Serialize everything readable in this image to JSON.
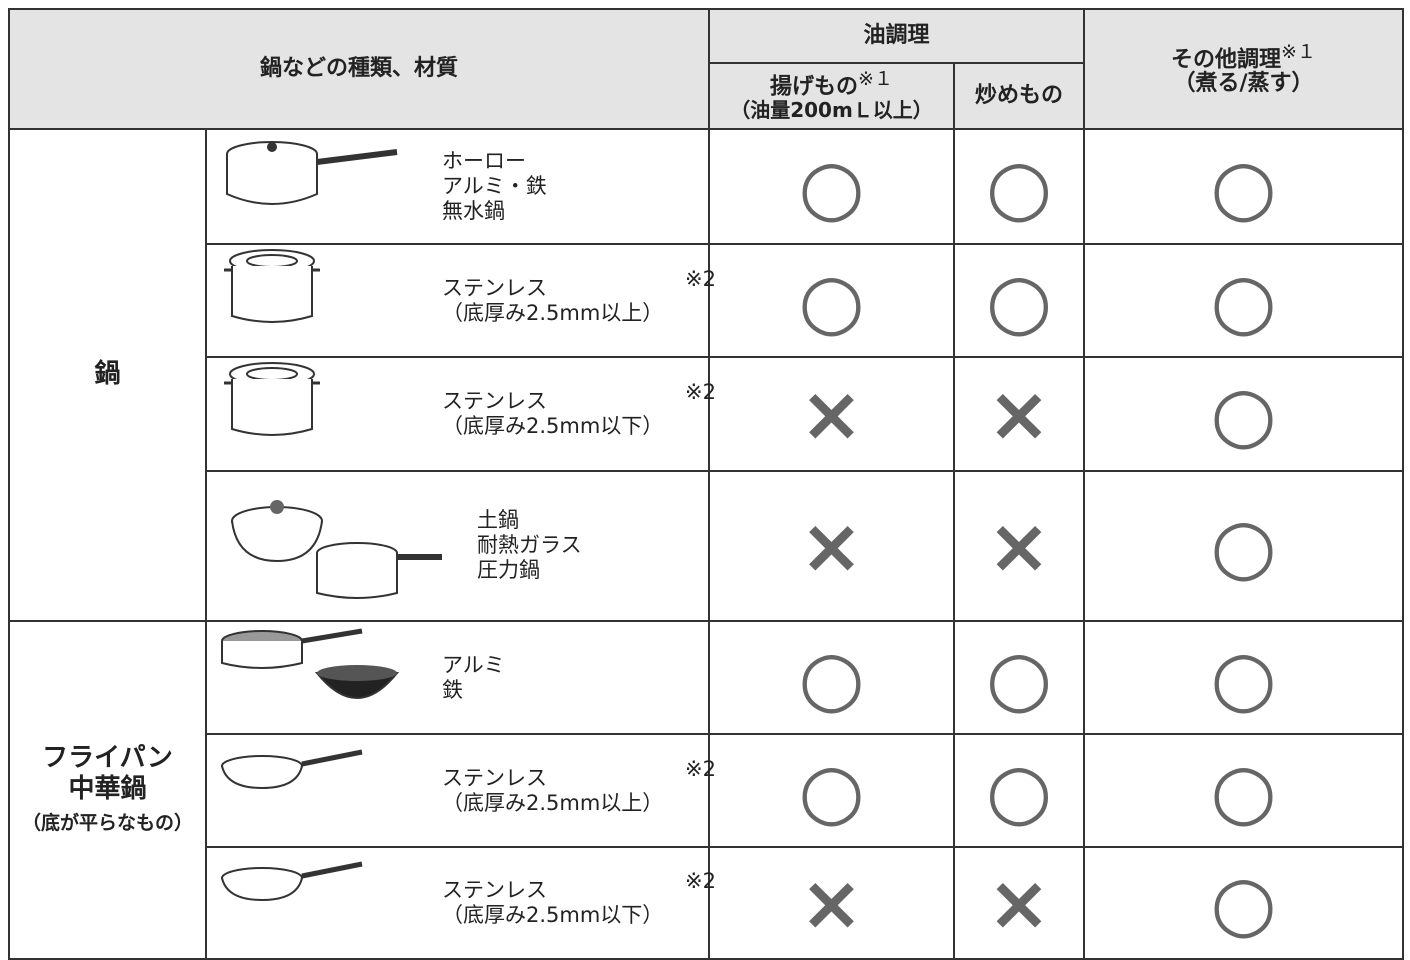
{
  "header": {
    "title": "鍋などの種類、材質",
    "oil": "油調理",
    "fry": {
      "label": "揚げもの",
      "note": "※１",
      "sub": "（油量200mＬ以上）"
    },
    "stir": "炒めもの",
    "other": {
      "label": "その他調理",
      "note": "※１",
      "sub": "（煮る/蒸す）"
    }
  },
  "groups": [
    {
      "category": [
        "鍋"
      ],
      "rows": [
        {
          "materials": [
            "ホーロー",
            "アルミ・鉄",
            "無水鍋"
          ],
          "marks": [
            "○",
            "○",
            "○"
          ]
        },
        {
          "materials": [
            "ステンレス",
            "（底厚み2.5mm以上）"
          ],
          "note": "※2",
          "marks": [
            "○",
            "○",
            "○"
          ]
        },
        {
          "materials": [
            "ステンレス",
            "（底厚み2.5mm以下）"
          ],
          "note": "※2",
          "marks": [
            "×",
            "×",
            "○"
          ]
        },
        {
          "materials": [
            "土鍋",
            "耐熱ガラス",
            "圧力鍋"
          ],
          "marks": [
            "×",
            "×",
            "○"
          ]
        }
      ]
    },
    {
      "category": [
        "フライパン",
        "中華鍋"
      ],
      "sub": "（底が平らなもの）",
      "rows": [
        {
          "materials": [
            "アルミ",
            "鉄"
          ],
          "marks": [
            "○",
            "○",
            "○"
          ]
        },
        {
          "materials": [
            "ステンレス",
            "（底厚み2.5mm以上）"
          ],
          "note": "※2",
          "marks": [
            "○",
            "○",
            "○"
          ]
        },
        {
          "materials": [
            "ステンレス",
            "（底厚み2.5mm以下）"
          ],
          "note": "※2",
          "marks": [
            "×",
            "×",
            "○"
          ]
        }
      ]
    }
  ]
}
